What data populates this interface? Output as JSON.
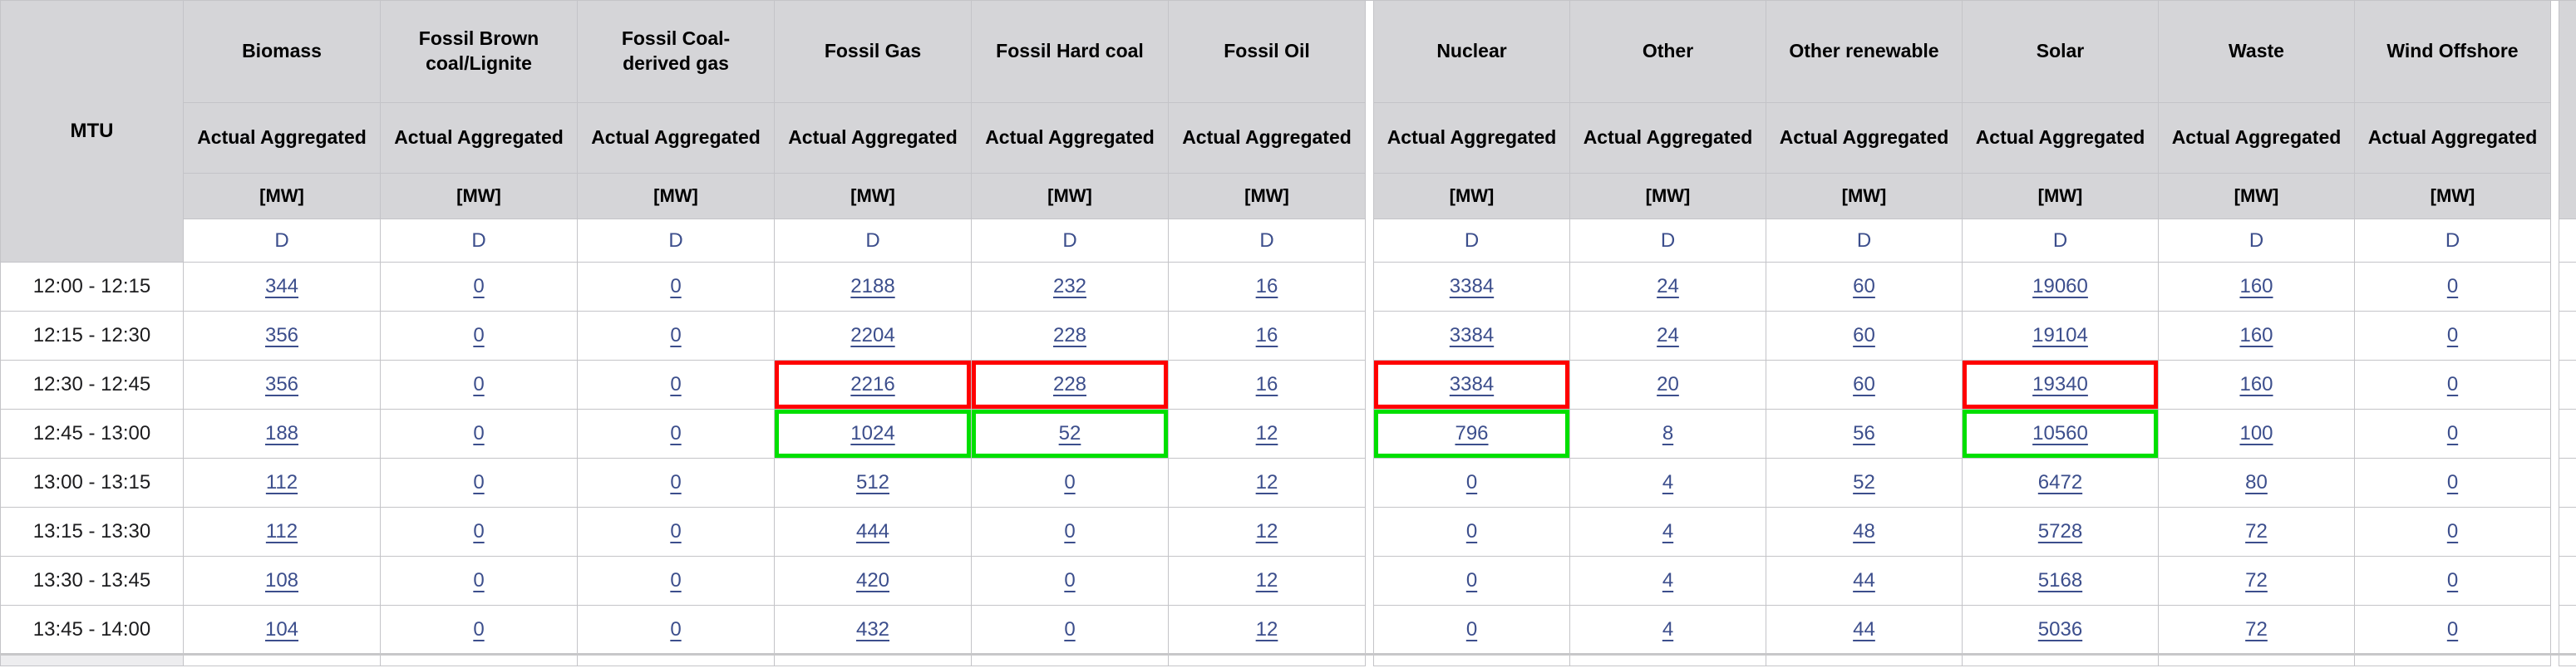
{
  "table": {
    "mtu_label": "MTU",
    "subheader_label": "Actual Aggregated",
    "unit_label": "[MW]",
    "d_row_label": "D",
    "columns": [
      {
        "name": "Biomass"
      },
      {
        "name": "Fossil Brown coal/Lignite"
      },
      {
        "name": "Fossil Coal-derived gas"
      },
      {
        "name": "Fossil Gas"
      },
      {
        "name": "Fossil Hard coal"
      },
      {
        "name": "Fossil Oil"
      },
      {
        "name": "Nuclear"
      },
      {
        "name": "Other"
      },
      {
        "name": "Other renewable"
      },
      {
        "name": "Solar"
      },
      {
        "name": "Waste"
      },
      {
        "name": "Wind Offshore"
      }
    ],
    "rows": [
      {
        "time": "12:00 - 12:15",
        "values": [
          "344",
          "0",
          "0",
          "2188",
          "232",
          "16",
          "3384",
          "24",
          "60",
          "19060",
          "160",
          "0"
        ]
      },
      {
        "time": "12:15 - 12:30",
        "values": [
          "356",
          "0",
          "0",
          "2204",
          "228",
          "16",
          "3384",
          "24",
          "60",
          "19104",
          "160",
          "0"
        ]
      },
      {
        "time": "12:30 - 12:45",
        "values": [
          "356",
          "0",
          "0",
          "2216",
          "228",
          "16",
          "3384",
          "20",
          "60",
          "19340",
          "160",
          "0"
        ]
      },
      {
        "time": "12:45 - 13:00",
        "values": [
          "188",
          "0",
          "0",
          "1024",
          "52",
          "12",
          "796",
          "8",
          "56",
          "10560",
          "100",
          "0"
        ]
      },
      {
        "time": "13:00 - 13:15",
        "values": [
          "112",
          "0",
          "0",
          "512",
          "0",
          "12",
          "0",
          "4",
          "52",
          "6472",
          "80",
          "0"
        ]
      },
      {
        "time": "13:15 - 13:30",
        "values": [
          "112",
          "0",
          "0",
          "444",
          "0",
          "12",
          "0",
          "4",
          "48",
          "5728",
          "72",
          "0"
        ]
      },
      {
        "time": "13:30 - 13:45",
        "values": [
          "108",
          "0",
          "0",
          "420",
          "0",
          "12",
          "0",
          "4",
          "44",
          "5168",
          "72",
          "0"
        ]
      },
      {
        "time": "13:45 - 14:00",
        "values": [
          "104",
          "0",
          "0",
          "432",
          "0",
          "12",
          "0",
          "4",
          "44",
          "5036",
          "72",
          "0"
        ]
      }
    ],
    "highlights": [
      {
        "row": 2,
        "col": 3,
        "color": "red"
      },
      {
        "row": 2,
        "col": 4,
        "color": "red"
      },
      {
        "row": 2,
        "col": 6,
        "color": "red"
      },
      {
        "row": 2,
        "col": 9,
        "color": "red"
      },
      {
        "row": 3,
        "col": 3,
        "color": "green"
      },
      {
        "row": 3,
        "col": 4,
        "color": "green"
      },
      {
        "row": 3,
        "col": 6,
        "color": "green"
      },
      {
        "row": 3,
        "col": 9,
        "color": "green"
      }
    ]
  },
  "colors": {
    "header_grey": "#d5d5d8",
    "border_grey": "#c4c4c8",
    "link_blue": "#3c4e8c",
    "highlight_red": "#ff0000",
    "highlight_green": "#00df00"
  }
}
